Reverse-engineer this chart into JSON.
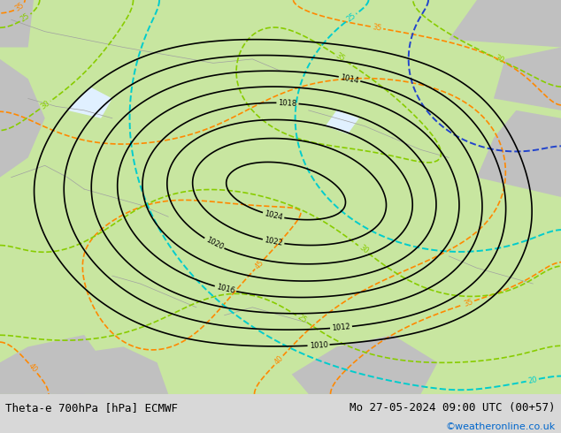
{
  "title_left": "Theta-e 700hPa [hPa] ECMWF",
  "title_right": "Mo 27-05-2024 09:00 UTC (00+57)",
  "credit": "©weatheronline.co.uk",
  "figsize": [
    6.34,
    4.9
  ],
  "dpi": 100,
  "bg_color": "#d8d8d8",
  "map_bg_light_green": "#c8e6a0",
  "map_bg_mid_green": "#b0d878",
  "map_bg_gray": "#c8c8c8",
  "contour_color_black": "#000000",
  "contour_color_orange": "#ffa500",
  "contour_color_lime": "#88cc00",
  "contour_color_cyan": "#00cccc",
  "contour_color_blue": "#0000cc",
  "bottom_bar_color": "#e8e8e8",
  "bottom_text_color": "#000000",
  "credit_color": "#0066cc",
  "title_fontsize": 9,
  "credit_fontsize": 8
}
